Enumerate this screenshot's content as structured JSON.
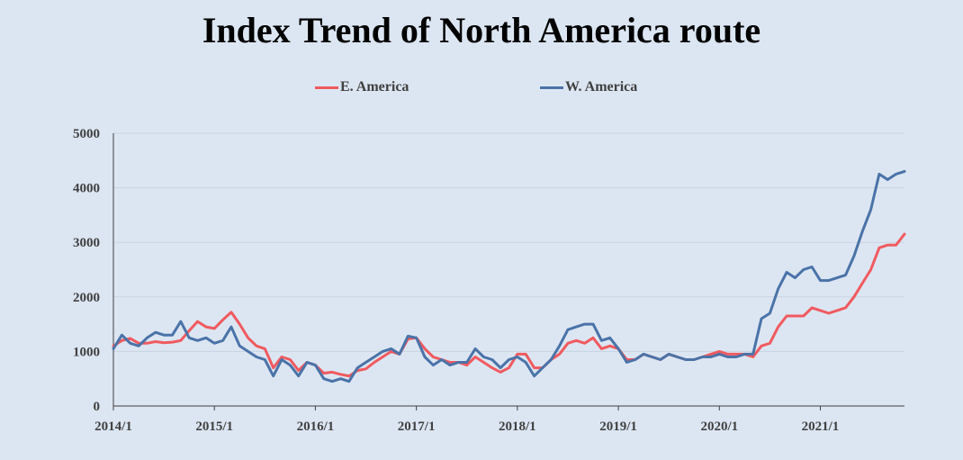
{
  "chart_data": {
    "type": "line",
    "title": "Index Trend of North America route",
    "xlabel": "",
    "ylabel": "",
    "x_range": [
      "2014-01",
      "2021-11"
    ],
    "x_ticks": [
      "2014/1",
      "2015/1",
      "2016/1",
      "2017/1",
      "2018/1",
      "2019/1",
      "2020/1",
      "2021/1"
    ],
    "y_ticks": [
      0,
      1000,
      2000,
      3000,
      4000,
      5000
    ],
    "ylim": [
      0,
      5000
    ],
    "grid": "horizontal",
    "legend_placement": "top",
    "series": [
      {
        "name": "E. America",
        "color": "#f05a5f",
        "points": [
          [
            "2014-01",
            1100
          ],
          [
            "2014-02",
            1200
          ],
          [
            "2014-03",
            1240
          ],
          [
            "2014-04",
            1150
          ],
          [
            "2014-05",
            1150
          ],
          [
            "2014-06",
            1180
          ],
          [
            "2014-07",
            1160
          ],
          [
            "2014-08",
            1170
          ],
          [
            "2014-09",
            1200
          ],
          [
            "2014-10",
            1380
          ],
          [
            "2014-11",
            1550
          ],
          [
            "2014-12",
            1450
          ],
          [
            "2015-01",
            1420
          ],
          [
            "2015-02",
            1580
          ],
          [
            "2015-03",
            1720
          ],
          [
            "2015-04",
            1500
          ],
          [
            "2015-05",
            1250
          ],
          [
            "2015-06",
            1100
          ],
          [
            "2015-07",
            1050
          ],
          [
            "2015-08",
            700
          ],
          [
            "2015-09",
            900
          ],
          [
            "2015-10",
            850
          ],
          [
            "2015-11",
            650
          ],
          [
            "2015-12",
            800
          ],
          [
            "2016-01",
            750
          ],
          [
            "2016-02",
            600
          ],
          [
            "2016-03",
            620
          ],
          [
            "2016-04",
            580
          ],
          [
            "2016-05",
            550
          ],
          [
            "2016-06",
            650
          ],
          [
            "2016-07",
            680
          ],
          [
            "2016-08",
            800
          ],
          [
            "2016-09",
            900
          ],
          [
            "2016-10",
            1000
          ],
          [
            "2016-11",
            950
          ],
          [
            "2016-12",
            1230
          ],
          [
            "2017-01",
            1250
          ],
          [
            "2017-02",
            1050
          ],
          [
            "2017-03",
            900
          ],
          [
            "2017-04",
            850
          ],
          [
            "2017-05",
            800
          ],
          [
            "2017-06",
            800
          ],
          [
            "2017-07",
            750
          ],
          [
            "2017-08",
            900
          ],
          [
            "2017-09",
            800
          ],
          [
            "2017-10",
            700
          ],
          [
            "2017-11",
            620
          ],
          [
            "2017-12",
            700
          ],
          [
            "2018-01",
            950
          ],
          [
            "2018-02",
            950
          ],
          [
            "2018-03",
            700
          ],
          [
            "2018-04",
            700
          ],
          [
            "2018-05",
            850
          ],
          [
            "2018-06",
            950
          ],
          [
            "2018-07",
            1150
          ],
          [
            "2018-08",
            1200
          ],
          [
            "2018-09",
            1150
          ],
          [
            "2018-10",
            1250
          ],
          [
            "2018-11",
            1050
          ],
          [
            "2018-12",
            1100
          ],
          [
            "2019-01",
            1050
          ],
          [
            "2019-02",
            850
          ],
          [
            "2019-03",
            850
          ],
          [
            "2019-04",
            950
          ],
          [
            "2019-05",
            900
          ],
          [
            "2019-06",
            850
          ],
          [
            "2019-07",
            950
          ],
          [
            "2019-08",
            900
          ],
          [
            "2019-09",
            850
          ],
          [
            "2019-10",
            850
          ],
          [
            "2019-11",
            900
          ],
          [
            "2019-12",
            950
          ],
          [
            "2020-01",
            1000
          ],
          [
            "2020-02",
            950
          ],
          [
            "2020-03",
            950
          ],
          [
            "2020-04",
            950
          ],
          [
            "2020-05",
            900
          ],
          [
            "2020-06",
            1100
          ],
          [
            "2020-07",
            1150
          ],
          [
            "2020-08",
            1450
          ],
          [
            "2020-09",
            1650
          ],
          [
            "2020-10",
            1650
          ],
          [
            "2020-11",
            1650
          ],
          [
            "2020-12",
            1800
          ],
          [
            "2021-01",
            1750
          ],
          [
            "2021-02",
            1700
          ],
          [
            "2021-03",
            1750
          ],
          [
            "2021-04",
            1800
          ],
          [
            "2021-05",
            2000
          ],
          [
            "2021-06",
            2250
          ],
          [
            "2021-07",
            2500
          ],
          [
            "2021-08",
            2900
          ],
          [
            "2021-09",
            2950
          ],
          [
            "2021-10",
            2950
          ],
          [
            "2021-11",
            3150
          ]
        ]
      },
      {
        "name": "W. America",
        "color": "#4a73a8",
        "points": [
          [
            "2014-01",
            1050
          ],
          [
            "2014-02",
            1300
          ],
          [
            "2014-03",
            1150
          ],
          [
            "2014-04",
            1100
          ],
          [
            "2014-05",
            1250
          ],
          [
            "2014-06",
            1350
          ],
          [
            "2014-07",
            1300
          ],
          [
            "2014-08",
            1300
          ],
          [
            "2014-09",
            1550
          ],
          [
            "2014-10",
            1250
          ],
          [
            "2014-11",
            1200
          ],
          [
            "2014-12",
            1250
          ],
          [
            "2015-01",
            1150
          ],
          [
            "2015-02",
            1200
          ],
          [
            "2015-03",
            1450
          ],
          [
            "2015-04",
            1100
          ],
          [
            "2015-05",
            1000
          ],
          [
            "2015-06",
            900
          ],
          [
            "2015-07",
            850
          ],
          [
            "2015-08",
            550
          ],
          [
            "2015-09",
            850
          ],
          [
            "2015-10",
            750
          ],
          [
            "2015-11",
            550
          ],
          [
            "2015-12",
            800
          ],
          [
            "2016-01",
            750
          ],
          [
            "2016-02",
            500
          ],
          [
            "2016-03",
            450
          ],
          [
            "2016-04",
            500
          ],
          [
            "2016-05",
            450
          ],
          [
            "2016-06",
            700
          ],
          [
            "2016-07",
            800
          ],
          [
            "2016-08",
            900
          ],
          [
            "2016-09",
            1000
          ],
          [
            "2016-10",
            1050
          ],
          [
            "2016-11",
            950
          ],
          [
            "2016-12",
            1280
          ],
          [
            "2017-01",
            1250
          ],
          [
            "2017-02",
            900
          ],
          [
            "2017-03",
            750
          ],
          [
            "2017-04",
            850
          ],
          [
            "2017-05",
            750
          ],
          [
            "2017-06",
            800
          ],
          [
            "2017-07",
            800
          ],
          [
            "2017-08",
            1050
          ],
          [
            "2017-09",
            900
          ],
          [
            "2017-10",
            850
          ],
          [
            "2017-11",
            700
          ],
          [
            "2017-12",
            850
          ],
          [
            "2018-01",
            900
          ],
          [
            "2018-02",
            800
          ],
          [
            "2018-03",
            550
          ],
          [
            "2018-04",
            700
          ],
          [
            "2018-05",
            850
          ],
          [
            "2018-06",
            1100
          ],
          [
            "2018-07",
            1400
          ],
          [
            "2018-08",
            1450
          ],
          [
            "2018-09",
            1500
          ],
          [
            "2018-10",
            1500
          ],
          [
            "2018-11",
            1200
          ],
          [
            "2018-12",
            1250
          ],
          [
            "2019-01",
            1050
          ],
          [
            "2019-02",
            800
          ],
          [
            "2019-03",
            850
          ],
          [
            "2019-04",
            950
          ],
          [
            "2019-05",
            900
          ],
          [
            "2019-06",
            850
          ],
          [
            "2019-07",
            950
          ],
          [
            "2019-08",
            900
          ],
          [
            "2019-09",
            850
          ],
          [
            "2019-10",
            850
          ],
          [
            "2019-11",
            900
          ],
          [
            "2019-12",
            900
          ],
          [
            "2020-01",
            950
          ],
          [
            "2020-02",
            900
          ],
          [
            "2020-03",
            900
          ],
          [
            "2020-04",
            950
          ],
          [
            "2020-05",
            950
          ],
          [
            "2020-06",
            1600
          ],
          [
            "2020-07",
            1700
          ],
          [
            "2020-08",
            2150
          ],
          [
            "2020-09",
            2450
          ],
          [
            "2020-10",
            2350
          ],
          [
            "2020-11",
            2500
          ],
          [
            "2020-12",
            2550
          ],
          [
            "2021-01",
            2300
          ],
          [
            "2021-02",
            2300
          ],
          [
            "2021-03",
            2350
          ],
          [
            "2021-04",
            2400
          ],
          [
            "2021-05",
            2750
          ],
          [
            "2021-06",
            3200
          ],
          [
            "2021-07",
            3600
          ],
          [
            "2021-08",
            4250
          ],
          [
            "2021-09",
            4150
          ],
          [
            "2021-10",
            4250
          ],
          [
            "2021-11",
            4300
          ]
        ]
      }
    ]
  }
}
